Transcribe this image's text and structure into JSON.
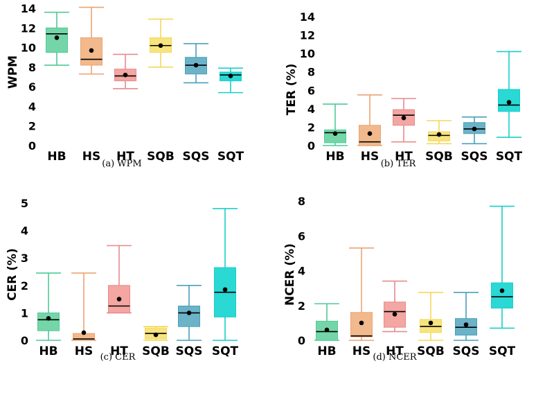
{
  "chart_data": [
    {
      "type": "box",
      "caption": "(a) WPM",
      "ylabel": "WPM",
      "ylim": [
        0,
        14
      ],
      "yticks": [
        0,
        2,
        4,
        6,
        8,
        10,
        12,
        14
      ],
      "categories": [
        "HB",
        "HS",
        "HT",
        "SQB",
        "SQS",
        "SQT"
      ],
      "boxes": [
        {
          "whisker_low": 8.2,
          "q1": 9.5,
          "median": 11.4,
          "q3": 12.0,
          "whisker_high": 13.6,
          "mean": 11.0
        },
        {
          "whisker_low": 7.3,
          "q1": 8.2,
          "median": 8.8,
          "q3": 11.0,
          "whisker_high": 14.1,
          "mean": 9.7
        },
        {
          "whisker_low": 5.8,
          "q1": 6.6,
          "median": 7.1,
          "q3": 7.8,
          "whisker_high": 9.3,
          "mean": 7.2
        },
        {
          "whisker_low": 8.0,
          "q1": 9.5,
          "median": 10.2,
          "q3": 11.0,
          "whisker_high": 12.9,
          "mean": 10.2
        },
        {
          "whisker_low": 6.4,
          "q1": 7.3,
          "median": 8.2,
          "q3": 9.0,
          "whisker_high": 10.4,
          "mean": 8.2
        },
        {
          "whisker_low": 5.4,
          "q1": 6.6,
          "median": 7.2,
          "q3": 7.5,
          "whisker_high": 7.9,
          "mean": 7.1
        }
      ]
    },
    {
      "type": "box",
      "caption": "(b) TER",
      "ylabel": "TER (%)",
      "ylim": [
        0,
        14
      ],
      "yticks": [
        0,
        2,
        4,
        6,
        8,
        10,
        12,
        14
      ],
      "categories": [
        "HB",
        "HS",
        "HT",
        "SQB",
        "SQS",
        "SQT"
      ],
      "boxes": [
        {
          "whisker_low": 0.0,
          "q1": 0.3,
          "median": 1.4,
          "q3": 1.7,
          "whisker_high": 4.5,
          "mean": 1.3
        },
        {
          "whisker_low": 0.0,
          "q1": 0.0,
          "median": 0.4,
          "q3": 2.2,
          "whisker_high": 5.5,
          "mean": 1.3
        },
        {
          "whisker_low": 0.4,
          "q1": 2.2,
          "median": 3.3,
          "q3": 3.9,
          "whisker_high": 5.1,
          "mean": 3.0
        },
        {
          "whisker_low": 0.2,
          "q1": 0.5,
          "median": 1.1,
          "q3": 1.5,
          "whisker_high": 2.7,
          "mean": 1.2
        },
        {
          "whisker_low": 0.2,
          "q1": 1.3,
          "median": 1.8,
          "q3": 2.5,
          "whisker_high": 3.1,
          "mean": 1.8
        },
        {
          "whisker_low": 0.9,
          "q1": 3.7,
          "median": 4.4,
          "q3": 6.1,
          "whisker_high": 10.2,
          "mean": 4.7
        }
      ]
    },
    {
      "type": "box",
      "caption": "(c) CER",
      "ylabel": "CER (%)",
      "ylim": [
        0,
        5
      ],
      "yticks": [
        0,
        1,
        2,
        3,
        4,
        5
      ],
      "categories": [
        "HB",
        "HS",
        "HT",
        "SQB",
        "SQS",
        "SQT"
      ],
      "boxes": [
        {
          "whisker_low": 0.0,
          "q1": 0.35,
          "median": 0.75,
          "q3": 1.0,
          "whisker_high": 2.45,
          "mean": 0.8
        },
        {
          "whisker_low": 0.0,
          "q1": 0.0,
          "median": 0.05,
          "q3": 0.25,
          "whisker_high": 2.45,
          "mean": 0.28
        },
        {
          "whisker_low": 1.0,
          "q1": 1.0,
          "median": 1.25,
          "q3": 2.0,
          "whisker_high": 3.45,
          "mean": 1.5
        },
        {
          "whisker_low": 0.0,
          "q1": 0.05,
          "median": 0.25,
          "q3": 0.45,
          "whisker_high": 0.5,
          "mean": 0.2
        },
        {
          "whisker_low": 0.0,
          "q1": 0.5,
          "median": 1.0,
          "q3": 1.25,
          "whisker_high": 2.0,
          "mean": 1.0
        },
        {
          "whisker_low": 0.0,
          "q1": 0.85,
          "median": 1.75,
          "q3": 2.65,
          "whisker_high": 4.8,
          "mean": 1.85
        }
      ]
    },
    {
      "type": "box",
      "caption": "(d) NCER",
      "ylabel": "NCER (%)",
      "ylim": [
        0,
        8
      ],
      "yticks": [
        0,
        2,
        4,
        6,
        8
      ],
      "categories": [
        "HB",
        "HS",
        "HT",
        "SQB",
        "SQS",
        "SQT"
      ],
      "boxes": [
        {
          "whisker_low": 0.0,
          "q1": 0.0,
          "median": 0.5,
          "q3": 1.1,
          "whisker_high": 2.1,
          "mean": 0.6
        },
        {
          "whisker_low": 0.0,
          "q1": 0.2,
          "median": 0.25,
          "q3": 1.6,
          "whisker_high": 5.3,
          "mean": 1.0
        },
        {
          "whisker_low": 0.5,
          "q1": 0.75,
          "median": 1.65,
          "q3": 2.2,
          "whisker_high": 3.4,
          "mean": 1.5
        },
        {
          "whisker_low": 0.0,
          "q1": 0.45,
          "median": 0.8,
          "q3": 1.2,
          "whisker_high": 2.75,
          "mean": 1.0
        },
        {
          "whisker_low": 0.0,
          "q1": 0.3,
          "median": 0.75,
          "q3": 1.25,
          "whisker_high": 2.75,
          "mean": 0.9
        },
        {
          "whisker_low": 0.7,
          "q1": 1.85,
          "median": 2.5,
          "q3": 3.3,
          "whisker_high": 7.7,
          "mean": 2.85
        }
      ]
    }
  ],
  "colors": {
    "fills": [
      "#74d6a8",
      "#f1b98c",
      "#f3a6a2",
      "#f8e47e",
      "#6cb3c8",
      "#2ad8d4"
    ],
    "lines": [
      "#4fc995",
      "#eaa473",
      "#e8898a",
      "#f3d85a",
      "#4a9fb9",
      "#18cfca"
    ]
  }
}
